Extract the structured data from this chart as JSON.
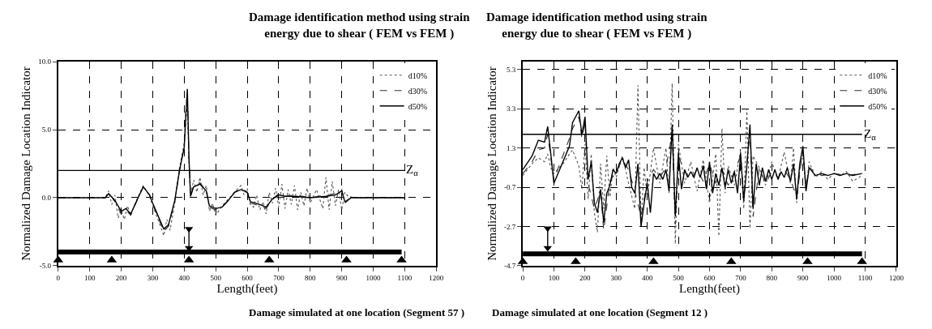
{
  "chart_data": [
    {
      "type": "line",
      "title": "Damage identification method using strain\nenergy due to shear ( FEM vs FEM )",
      "xlabel": "Length(feet)",
      "ylabel": "Normalized Damage Location Indicator",
      "annotations": [
        "Damage simulated at one location (Segment 57 )"
      ],
      "xlim": [
        0,
        1200
      ],
      "xticks": [
        0,
        100,
        200,
        300,
        400,
        500,
        600,
        700,
        800,
        900,
        1000,
        1100,
        1200
      ],
      "ylim": [
        -5,
        10
      ],
      "yticks": [
        {
          "value": -5,
          "label": "-5.0"
        },
        {
          "value": 0,
          "label": "0.0"
        },
        {
          "value": 5,
          "label": "5.0"
        },
        {
          "value": 10,
          "label": "10.0"
        }
      ],
      "grid": true,
      "legend": "top right",
      "marker": "none",
      "ref_lines": [
        {
          "axis": "y",
          "value": 2,
          "label": "Z$_{α}$",
          "color": "#000000"
        }
      ],
      "series": [
        {
          "name": "d10%",
          "color": "#555555",
          "line_style": "dotted",
          "x": [
            0,
            150,
            160,
            170,
            180,
            190,
            200,
            210,
            220,
            230,
            250,
            270,
            290,
            300,
            320,
            335,
            345,
            355,
            370,
            385,
            400,
            410,
            415,
            420,
            430,
            440,
            450,
            460,
            470,
            480,
            490,
            500,
            520,
            540,
            560,
            580,
            590,
            600,
            610,
            620,
            630,
            640,
            650,
            660,
            670,
            680,
            690,
            700,
            710,
            720,
            730,
            740,
            750,
            760,
            770,
            780,
            790,
            800,
            820,
            840,
            850,
            860,
            870,
            880,
            890,
            900,
            910,
            920,
            940,
            1000,
            1080,
            1100
          ],
          "values": [
            0,
            0,
            0.5,
            -0.5,
            0.2,
            -1.5,
            -0.9,
            -1.6,
            -0.6,
            -1.3,
            -0.1,
            0.9,
            0.1,
            -0.6,
            -1.8,
            -2.8,
            -1.6,
            -2.4,
            -0.4,
            2.2,
            4.0,
            7.0,
            2.6,
            0.2,
            1.3,
            0.4,
            1.5,
            0.2,
            0.9,
            -1.0,
            -0.4,
            -1.3,
            -0.6,
            -0.1,
            0.4,
            0.9,
            0.2,
            0.7,
            -0.5,
            -0.7,
            0.2,
            -0.9,
            -0.3,
            -1.2,
            0.4,
            -0.4,
            0.7,
            -0.7,
            1.0,
            -0.8,
            0.6,
            -0.5,
            0.9,
            -0.9,
            0.4,
            -0.6,
            0.7,
            -0.4,
            0.6,
            -0.8,
            1.5,
            -0.9,
            1.2,
            -0.6,
            0.6,
            -0.9,
            0.4,
            0.1,
            0,
            0,
            0,
            0
          ]
        },
        {
          "name": "d30%",
          "color": "#333333",
          "line_style": "dashed",
          "x": [
            0,
            150,
            160,
            180,
            200,
            215,
            230,
            250,
            270,
            290,
            300,
            320,
            335,
            350,
            370,
            385,
            400,
            405,
            410,
            415,
            420,
            430,
            450,
            470,
            480,
            500,
            520,
            540,
            560,
            580,
            600,
            610,
            640,
            660,
            680,
            700,
            720,
            750,
            800,
            850,
            880,
            900,
            910,
            930,
            1000,
            1100
          ],
          "values": [
            0,
            0,
            0.4,
            -0.3,
            -1.2,
            -0.9,
            -1.3,
            -0.2,
            0.8,
            0.2,
            -0.5,
            -1.6,
            -2.5,
            -2.1,
            -0.3,
            2.0,
            3.8,
            6.2,
            7.8,
            3.0,
            0.1,
            0.9,
            1.1,
            0.5,
            -0.7,
            -0.9,
            -0.7,
            -0.2,
            0.4,
            0.7,
            0.4,
            -0.4,
            -0.6,
            -0.8,
            -0.1,
            0.3,
            0.1,
            0.2,
            0,
            0.2,
            0.3,
            0.6,
            -0.4,
            0,
            0,
            0
          ]
        },
        {
          "name": "d50%",
          "color": "#000000",
          "line_style": "solid",
          "x": [
            0,
            150,
            160,
            180,
            200,
            215,
            230,
            250,
            270,
            290,
            300,
            320,
            335,
            350,
            370,
            385,
            400,
            405,
            410,
            415,
            420,
            430,
            450,
            470,
            480,
            500,
            520,
            540,
            560,
            580,
            600,
            610,
            640,
            660,
            680,
            700,
            720,
            750,
            800,
            850,
            880,
            900,
            910,
            930,
            1000,
            1080,
            1100
          ],
          "values": [
            0,
            0,
            0.3,
            -0.2,
            -1.0,
            -0.8,
            -1.2,
            -0.2,
            0.8,
            0.2,
            -0.4,
            -1.5,
            -2.3,
            -2.0,
            -0.2,
            2.0,
            3.7,
            6.0,
            8.0,
            3.0,
            0.1,
            0.8,
            1.0,
            0.5,
            -0.6,
            -0.8,
            -0.7,
            -0.2,
            0.4,
            0.6,
            0.4,
            -0.3,
            -0.5,
            -0.7,
            -0.1,
            0.2,
            0.1,
            0.1,
            0,
            0.1,
            0.2,
            0.5,
            -0.3,
            0,
            0,
            0,
            0
          ]
        },
        {
          "color": "#000000",
          "line_style": "solid",
          "x": [
            0,
            1090
          ],
          "values": [
            -4.0,
            -4.0
          ]
        },
        {
          "type": "scatter",
          "color": "#000000",
          "marker": "triangle",
          "x": [
            0,
            170,
            415,
            670,
            915,
            1090
          ],
          "values": [
            -4.6,
            -4.6,
            -4.6,
            -4.6,
            -4.6,
            -4.6
          ]
        },
        {
          "color": "#000000",
          "line_style": "solid",
          "marker": "triangle-down",
          "x": [
            415,
            415
          ],
          "values": [
            -2.3,
            -3.7
          ]
        }
      ]
    },
    {
      "type": "line",
      "title": "Damage identification method using strain\nenergy due to shear ( FEM vs FEM )",
      "xlabel": "Length(feet)",
      "ylabel": "Normalized Damage Location Indicator",
      "annotations": [
        "Damage simulated at one location (Segment 12 )"
      ],
      "xlim": [
        0,
        1200
      ],
      "xticks": [
        0,
        100,
        200,
        300,
        400,
        500,
        600,
        700,
        800,
        900,
        1000,
        1100,
        1200
      ],
      "ylim": [
        -4.7,
        5.7
      ],
      "yticks": [
        -4.7,
        -2.7,
        -0.7,
        1.3,
        3.3,
        5.3
      ],
      "grid": true,
      "legend": "top right",
      "marker": "none",
      "ref_lines": [
        {
          "axis": "y",
          "value": 2.0,
          "label": "Z$_{α}$",
          "color": "#000000"
        }
      ],
      "series": [
        {
          "name": "d10%",
          "color": "#555555",
          "line_style": "dotted",
          "x": [
            0,
            30,
            50,
            70,
            80,
            90,
            100,
            130,
            150,
            160,
            180,
            190,
            200,
            210,
            220,
            230,
            240,
            250,
            260,
            270,
            280,
            290,
            300,
            320,
            340,
            360,
            370,
            380,
            390,
            400,
            420,
            440,
            460,
            470,
            480,
            490,
            500,
            520,
            540,
            560,
            580,
            600,
            620,
            630,
            640,
            650,
            660,
            680,
            700,
            710,
            720,
            730,
            740,
            760,
            780,
            800,
            820,
            840,
            860,
            870,
            880,
            890,
            900,
            910,
            920,
            940,
            960,
            980,
            1000,
            1020,
            1040,
            1060,
            1090
          ],
          "values": [
            -0.1,
            0.5,
            0.8,
            0.6,
            1.0,
            0.3,
            0.0,
            0.5,
            1.0,
            1.2,
            0.4,
            -0.8,
            1.5,
            -1.3,
            1.0,
            -2.0,
            -3.0,
            0.5,
            -1.8,
            0.9,
            -1.2,
            0.3,
            -0.2,
            0.9,
            -0.5,
            -1.8,
            4.5,
            -2.5,
            0.3,
            -1.2,
            1.3,
            -0.5,
            1.3,
            -1.0,
            4.6,
            -3.6,
            1.5,
            -0.5,
            0.6,
            -0.9,
            0.7,
            -1.5,
            1.0,
            -3.2,
            2.3,
            -1.0,
            0.4,
            -0.6,
            1.2,
            -1.8,
            3.3,
            -2.8,
            0.9,
            0.3,
            -0.6,
            0.6,
            -0.3,
            1.1,
            -0.5,
            1.3,
            -1.5,
            0.2,
            1.0,
            -0.8,
            0.6,
            -0.2,
            0.1,
            -0.3,
            0.0,
            -0.1,
            0.1,
            -0.4,
            -0.1
          ]
        },
        {
          "name": "d30%",
          "color": "#333333",
          "line_style": "dashed",
          "x": [
            0,
            30,
            50,
            70,
            80,
            90,
            100,
            150,
            160,
            180,
            190,
            200,
            210,
            230,
            250,
            260,
            280,
            300,
            320,
            340,
            360,
            380,
            400,
            420,
            440,
            460,
            480,
            490,
            500,
            520,
            540,
            560,
            580,
            600,
            620,
            640,
            660,
            680,
            700,
            710,
            730,
            740,
            760,
            780,
            800,
            820,
            840,
            860,
            880,
            900,
            910,
            920,
            960,
            1000,
            1040,
            1090
          ],
          "values": [
            0,
            0.6,
            1.2,
            1.3,
            2.0,
            0.8,
            -0.3,
            1.8,
            2.3,
            2.9,
            1.8,
            2.6,
            -0.5,
            -1.8,
            -0.9,
            -2.9,
            -0.4,
            0.1,
            0.7,
            0.2,
            -0.9,
            -2.2,
            -0.4,
            0.2,
            -0.2,
            0.3,
            2.0,
            -2.6,
            0.9,
            0.1,
            -0.3,
            0.2,
            -0.4,
            0.5,
            -0.5,
            0.2,
            -0.6,
            0.1,
            0.9,
            -1.3,
            2.2,
            -2.2,
            0.3,
            -0.5,
            0.1,
            -0.2,
            0.2,
            -0.3,
            -1.2,
            1.2,
            -0.7,
            0.3,
            -0.1,
            0.0,
            -0.1,
            0.0
          ]
        },
        {
          "name": "d50%",
          "color": "#000000",
          "line_style": "solid",
          "x": [
            0,
            30,
            50,
            70,
            80,
            90,
            100,
            150,
            160,
            180,
            190,
            200,
            210,
            220,
            230,
            240,
            250,
            260,
            270,
            280,
            290,
            300,
            310,
            320,
            330,
            340,
            350,
            360,
            370,
            380,
            390,
            400,
            410,
            420,
            430,
            440,
            450,
            460,
            470,
            480,
            490,
            500,
            510,
            520,
            530,
            540,
            550,
            560,
            570,
            580,
            590,
            600,
            610,
            620,
            630,
            640,
            650,
            660,
            670,
            680,
            690,
            700,
            710,
            720,
            730,
            740,
            750,
            760,
            770,
            780,
            790,
            800,
            810,
            820,
            830,
            840,
            850,
            860,
            870,
            880,
            890,
            900,
            910,
            920,
            940,
            960,
            980,
            1000,
            1020,
            1040,
            1060,
            1090
          ],
          "values": [
            0.2,
            0.9,
            1.7,
            1.6,
            2.4,
            1.0,
            -0.5,
            1.4,
            2.6,
            3.2,
            2.0,
            2.9,
            -0.3,
            0.6,
            -1.5,
            -2.0,
            -0.8,
            -2.5,
            -1.0,
            -0.6,
            0.2,
            0.0,
            0.5,
            0.8,
            0.3,
            0.7,
            -0.7,
            -1.0,
            0.5,
            -2.7,
            -1.5,
            -0.5,
            -2.0,
            0.0,
            -0.3,
            0.0,
            -0.3,
            0.2,
            -0.9,
            2.5,
            -2.2,
            1.0,
            -0.8,
            0.2,
            -0.2,
            0.1,
            -0.2,
            0.3,
            -0.2,
            0.4,
            -0.8,
            0.6,
            -1.0,
            0.0,
            -0.6,
            0.3,
            -0.7,
            0.2,
            -0.5,
            0.1,
            -1.0,
            1.0,
            -1.4,
            0.4,
            2.5,
            -1.8,
            0.5,
            -0.6,
            0.3,
            -0.4,
            0.2,
            -0.3,
            0.2,
            -0.3,
            0.1,
            -0.2,
            0.3,
            -0.4,
            0.5,
            -1.3,
            0.5,
            1.4,
            -0.9,
            0.3,
            -0.1,
            0.0,
            -0.1,
            0.0,
            -0.1,
            0.0,
            -0.1,
            0.0
          ]
        },
        {
          "color": "#000000",
          "line_style": "solid",
          "x": [
            0,
            1090
          ],
          "values": [
            -4.1,
            -4.1
          ]
        },
        {
          "type": "scatter",
          "color": "#000000",
          "marker": "triangle",
          "x": [
            0,
            170,
            420,
            670,
            915,
            1090
          ],
          "values": [
            -4.5,
            -4.5,
            -4.5,
            -4.5,
            -4.5,
            -4.5
          ]
        },
        {
          "color": "#000000",
          "line_style": "solid",
          "marker": "triangle-down",
          "x": [
            80,
            80
          ],
          "values": [
            -2.8,
            -3.8
          ]
        }
      ]
    }
  ]
}
